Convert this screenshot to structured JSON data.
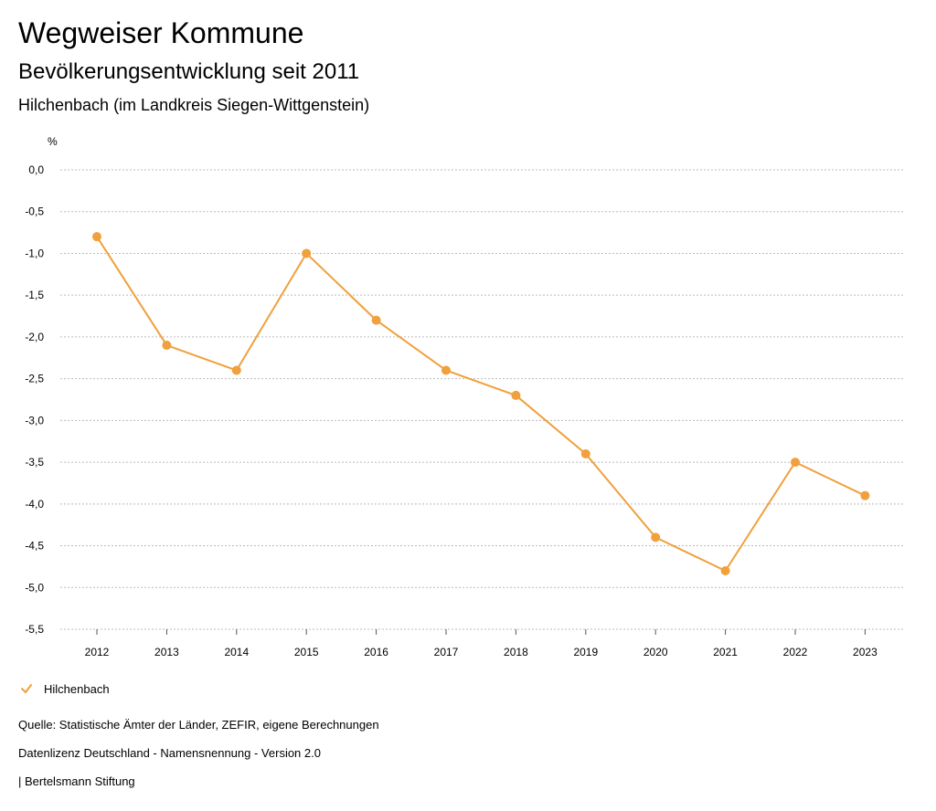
{
  "header": {
    "title": "Wegweiser Kommune",
    "subtitle": "Bevölkerungsentwicklung seit 2011",
    "region": "Hilchenbach (im Landkreis Siegen-Wittgenstein)"
  },
  "legend": {
    "label": "Hilchenbach"
  },
  "footer": {
    "source": "Quelle: Statistische Ämter der Länder, ZEFIR, eigene Berechnungen",
    "license": "Datenlizenz Deutschland - Namensnennung - Version 2.0",
    "publisher": "| Bertelsmann Stiftung"
  },
  "colors": {
    "series": "#f0a03c",
    "grid": "#bbbbbb",
    "axis": "#555555"
  },
  "chart_data": {
    "type": "line",
    "title": "",
    "xlabel": "",
    "ylabel": "%",
    "x": [
      "2012",
      "2013",
      "2014",
      "2015",
      "2016",
      "2017",
      "2018",
      "2019",
      "2020",
      "2021",
      "2022",
      "2023"
    ],
    "series": [
      {
        "name": "Hilchenbach",
        "values": [
          -0.8,
          -2.1,
          -2.4,
          -1.0,
          -1.8,
          -2.4,
          -2.7,
          -3.4,
          -4.4,
          -4.8,
          -3.5,
          -3.9
        ]
      }
    ],
    "yticks": [
      0.0,
      -0.5,
      -1.0,
      -1.5,
      -2.0,
      -2.5,
      -3.0,
      -3.5,
      -4.0,
      -4.5,
      -5.0,
      -5.5
    ],
    "ytick_labels": [
      "0,0",
      "-0,5",
      "-1,0",
      "-1,5",
      "-2,0",
      "-2,5",
      "-3,0",
      "-3,5",
      "-4,0",
      "-4,5",
      "-5,0",
      "-5,5"
    ],
    "ylim": [
      -5.5,
      0.0
    ],
    "grid": true,
    "legend_position": "bottom-left"
  }
}
